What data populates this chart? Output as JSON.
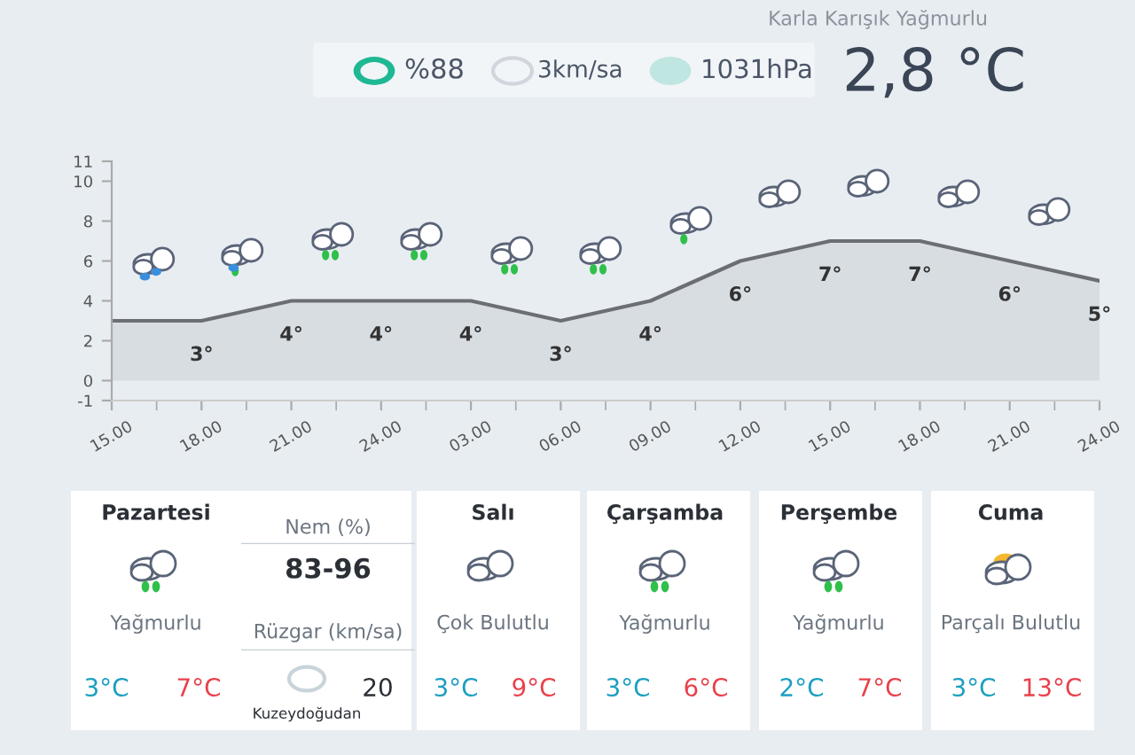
{
  "chart_data": [
    {
      "type": "other",
      "annotations": [
        "Karla Karışık Yağmurlu",
        "%88",
        "3km/sa",
        "1031hPa",
        "2,8 °C"
      ]
    },
    {
      "type": "area",
      "categories": [
        "15.00",
        "18.00",
        "21.00",
        "24.00",
        "03.00",
        "06.00",
        "09.00",
        "12.00",
        "15.00",
        "18.00",
        "21.00",
        "24.00"
      ],
      "series": [
        {
          "color": "#6b6f75",
          "values": [
            3,
            3,
            4,
            4,
            4,
            3,
            4,
            6,
            7,
            7,
            6,
            5
          ],
          "value_labels": [
            null,
            "3°",
            "4°",
            "4°",
            "4°",
            "3°",
            "4°",
            "6°",
            "7°",
            "7°",
            "6°",
            "5°"
          ]
        }
      ],
      "ylim": [
        -1,
        11
      ],
      "yticks": [
        -1,
        0,
        2,
        4,
        6,
        8,
        10,
        11
      ],
      "grid": false,
      "legend": false
    },
    {
      "type": "other",
      "annotations": [
        "Pazartesi",
        "Yağmurlu",
        "3°C",
        "7°C",
        "Nem (%)",
        "83-96",
        "Rüzgar (km/sa)",
        "Kuzeydoğudan",
        "20",
        "Salı",
        "Çok Bulutlu",
        "3°C",
        "9°C",
        "Çarşamba",
        "Yağmurlu",
        "3°C",
        "6°C",
        "Perşembe",
        "Yağmurlu",
        "2°C",
        "7°C",
        "Cuma",
        "Parçalı Bulutlu",
        "3°C",
        "13°C"
      ]
    }
  ]
}
